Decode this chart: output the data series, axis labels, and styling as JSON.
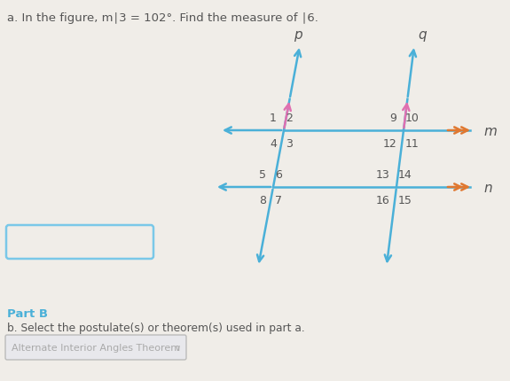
{
  "title_text": "a. In the figure, m∣3 = 102°. Find the measure of ∣6.",
  "bg_color": "#f0ede8",
  "line_color_blue": "#4ab0d8",
  "arrow_color_pink": "#e070b0",
  "arrow_color_orange": "#e07830",
  "label_p": "p",
  "label_q": "q",
  "label_m": "m",
  "label_n": "n",
  "part_b_label": "Part B",
  "part_b_text": "b. Select the postulate(s) or theorem(s) used in part a.",
  "part_b_answer": "Alternate Interior Angles Theorem",
  "title_color": "#555555",
  "part_b_color": "#4ab0d8",
  "text_color": "#555555",
  "answer_text_color": "#aaaaaa",
  "box_edge_color": "#7ac8e8",
  "box_face_color": "#f0ede8",
  "dropdown_edge_color": "#bbbbbb",
  "dropdown_face_color": "#e8e8ec"
}
